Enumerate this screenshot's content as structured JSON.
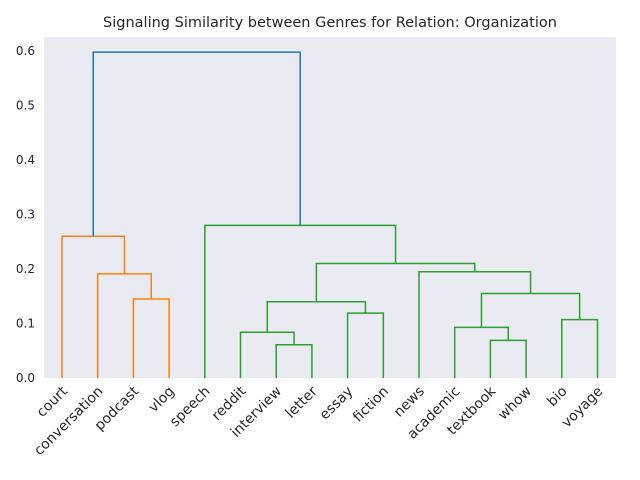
{
  "chart_data": {
    "type": "dendrogram",
    "title": "Signaling Similarity between Genres for Relation: Organization",
    "xlabel": "",
    "ylabel": "",
    "ylim": [
      0,
      0.63
    ],
    "yticks": [
      "0.0",
      "0.1",
      "0.2",
      "0.3",
      "0.4",
      "0.5",
      "0.6"
    ],
    "grid": false,
    "leaves": [
      "court",
      "conversation",
      "podcast",
      "vlog",
      "speech",
      "reddit",
      "interview",
      "letter",
      "essay",
      "fiction",
      "news",
      "academic",
      "textbook",
      "whow",
      "bio",
      "voyage"
    ],
    "colors": {
      "root": "#1f77b4",
      "cluster1": "#ff7f0e",
      "cluster2": "#2ca02c",
      "background": "#eaeaf2"
    },
    "links": [
      {
        "left": "podcast",
        "right": "vlog",
        "height": 0.145,
        "color": "cluster1"
      },
      {
        "left": "conversation",
        "right": "podcast+vlog",
        "height": 0.191,
        "color": "cluster1"
      },
      {
        "left": "court",
        "right": "conversation+podcast+vlog",
        "height": 0.26,
        "color": "cluster1"
      },
      {
        "left": "interview",
        "right": "letter",
        "height": 0.061,
        "color": "cluster2"
      },
      {
        "left": "reddit",
        "right": "interview+letter",
        "height": 0.084,
        "color": "cluster2"
      },
      {
        "left": "essay",
        "right": "fiction",
        "height": 0.119,
        "color": "cluster2"
      },
      {
        "left": "reddit+interview+letter",
        "right": "essay+fiction",
        "height": 0.14,
        "color": "cluster2"
      },
      {
        "left": "textbook",
        "right": "whow",
        "height": 0.069,
        "color": "cluster2"
      },
      {
        "left": "academic",
        "right": "textbook+whow",
        "height": 0.093,
        "color": "cluster2"
      },
      {
        "left": "bio",
        "right": "voyage",
        "height": 0.107,
        "color": "cluster2"
      },
      {
        "left": "academic+textbook+whow",
        "right": "bio+voyage",
        "height": 0.155,
        "color": "cluster2"
      },
      {
        "left": "news",
        "right": "academic..voyage",
        "height": 0.195,
        "color": "cluster2"
      },
      {
        "left": "reddit..fiction",
        "right": "news..voyage",
        "height": 0.21,
        "color": "cluster2"
      },
      {
        "left": "speech",
        "right": "reddit..voyage",
        "height": 0.28,
        "color": "cluster2"
      },
      {
        "left": "court..vlog",
        "right": "speech..voyage",
        "height": 0.598,
        "color": "root"
      }
    ]
  }
}
